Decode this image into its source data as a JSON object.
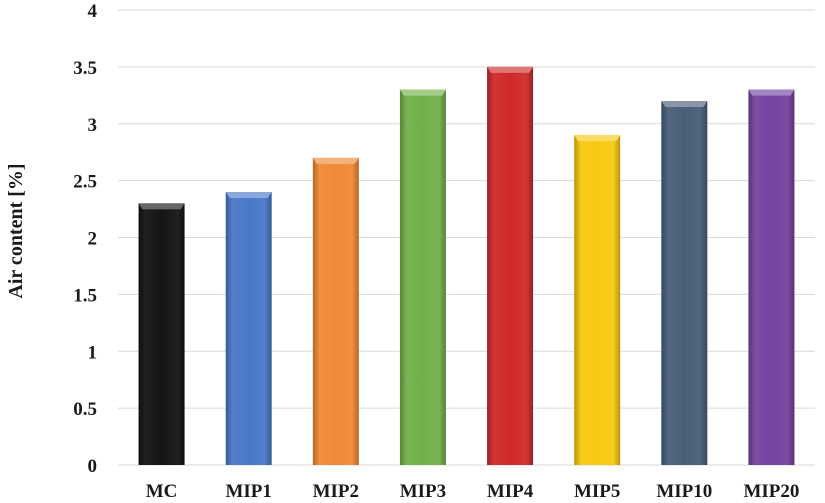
{
  "chart_data": {
    "type": "bar",
    "title": "",
    "xlabel": "",
    "ylabel": "Air content [%]",
    "categories": [
      "MC",
      "MIP1",
      "MIP2",
      "MIP3",
      "MIP4",
      "MIP5",
      "MIP10",
      "MIP20"
    ],
    "values": [
      2.3,
      2.4,
      2.7,
      3.3,
      3.5,
      2.9,
      3.2,
      3.3
    ],
    "colors": [
      "#141414",
      "#4a78c8",
      "#f08a36",
      "#72b04a",
      "#d02a2a",
      "#f8c812",
      "#4a5e78",
      "#7444a0"
    ],
    "ylim": [
      0,
      4
    ],
    "yticks": [
      "0",
      "0.5",
      "1",
      "1.5",
      "2",
      "2.5",
      "3",
      "3.5",
      "4"
    ],
    "grid": true,
    "legend": "none"
  }
}
